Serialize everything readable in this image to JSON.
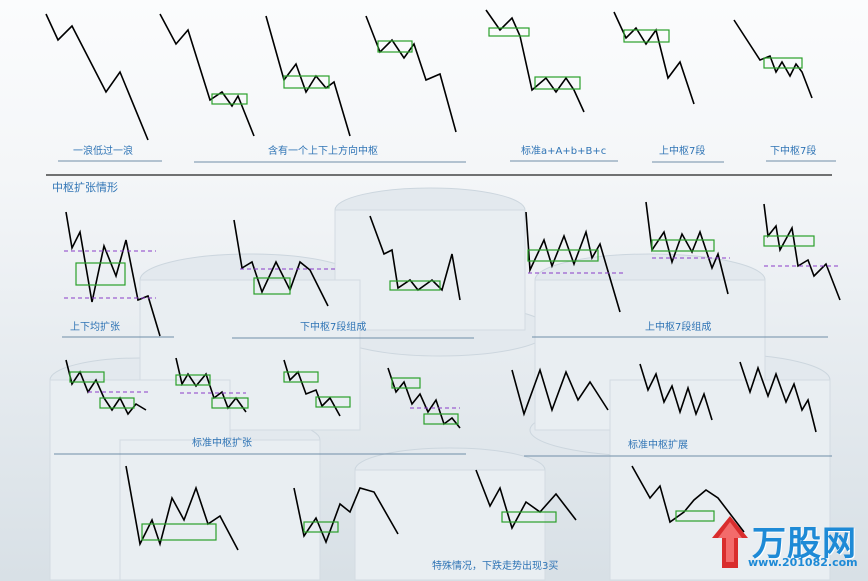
{
  "colors": {
    "line": "#000000",
    "box": "#2aa02a",
    "dash": "#8a3cc8",
    "label": "#2f74b5",
    "underline": "#6f8ea8"
  },
  "row1": {
    "labels": {
      "one_wave": "一浪低过一浪",
      "updown": "含有一个上下上方向中枢",
      "standard": "标准a+A+b+B+c",
      "up7": "上中枢7段",
      "down7": "下中枢7段"
    }
  },
  "section_title": "中枢扩张情形",
  "row2": {
    "labels": {
      "both": "上下均扩张",
      "down7": "下中枢7段组成",
      "up7": "上中枢7段组成"
    }
  },
  "row3": {
    "labels": {
      "std_expand": "标准中枢扩张",
      "std_extend": "标准中枢扩展"
    }
  },
  "row4": {
    "caption": "特殊情况，下跌走势出现3买"
  },
  "watermark": {
    "brand": "万股网",
    "url": "www.201082.com"
  }
}
